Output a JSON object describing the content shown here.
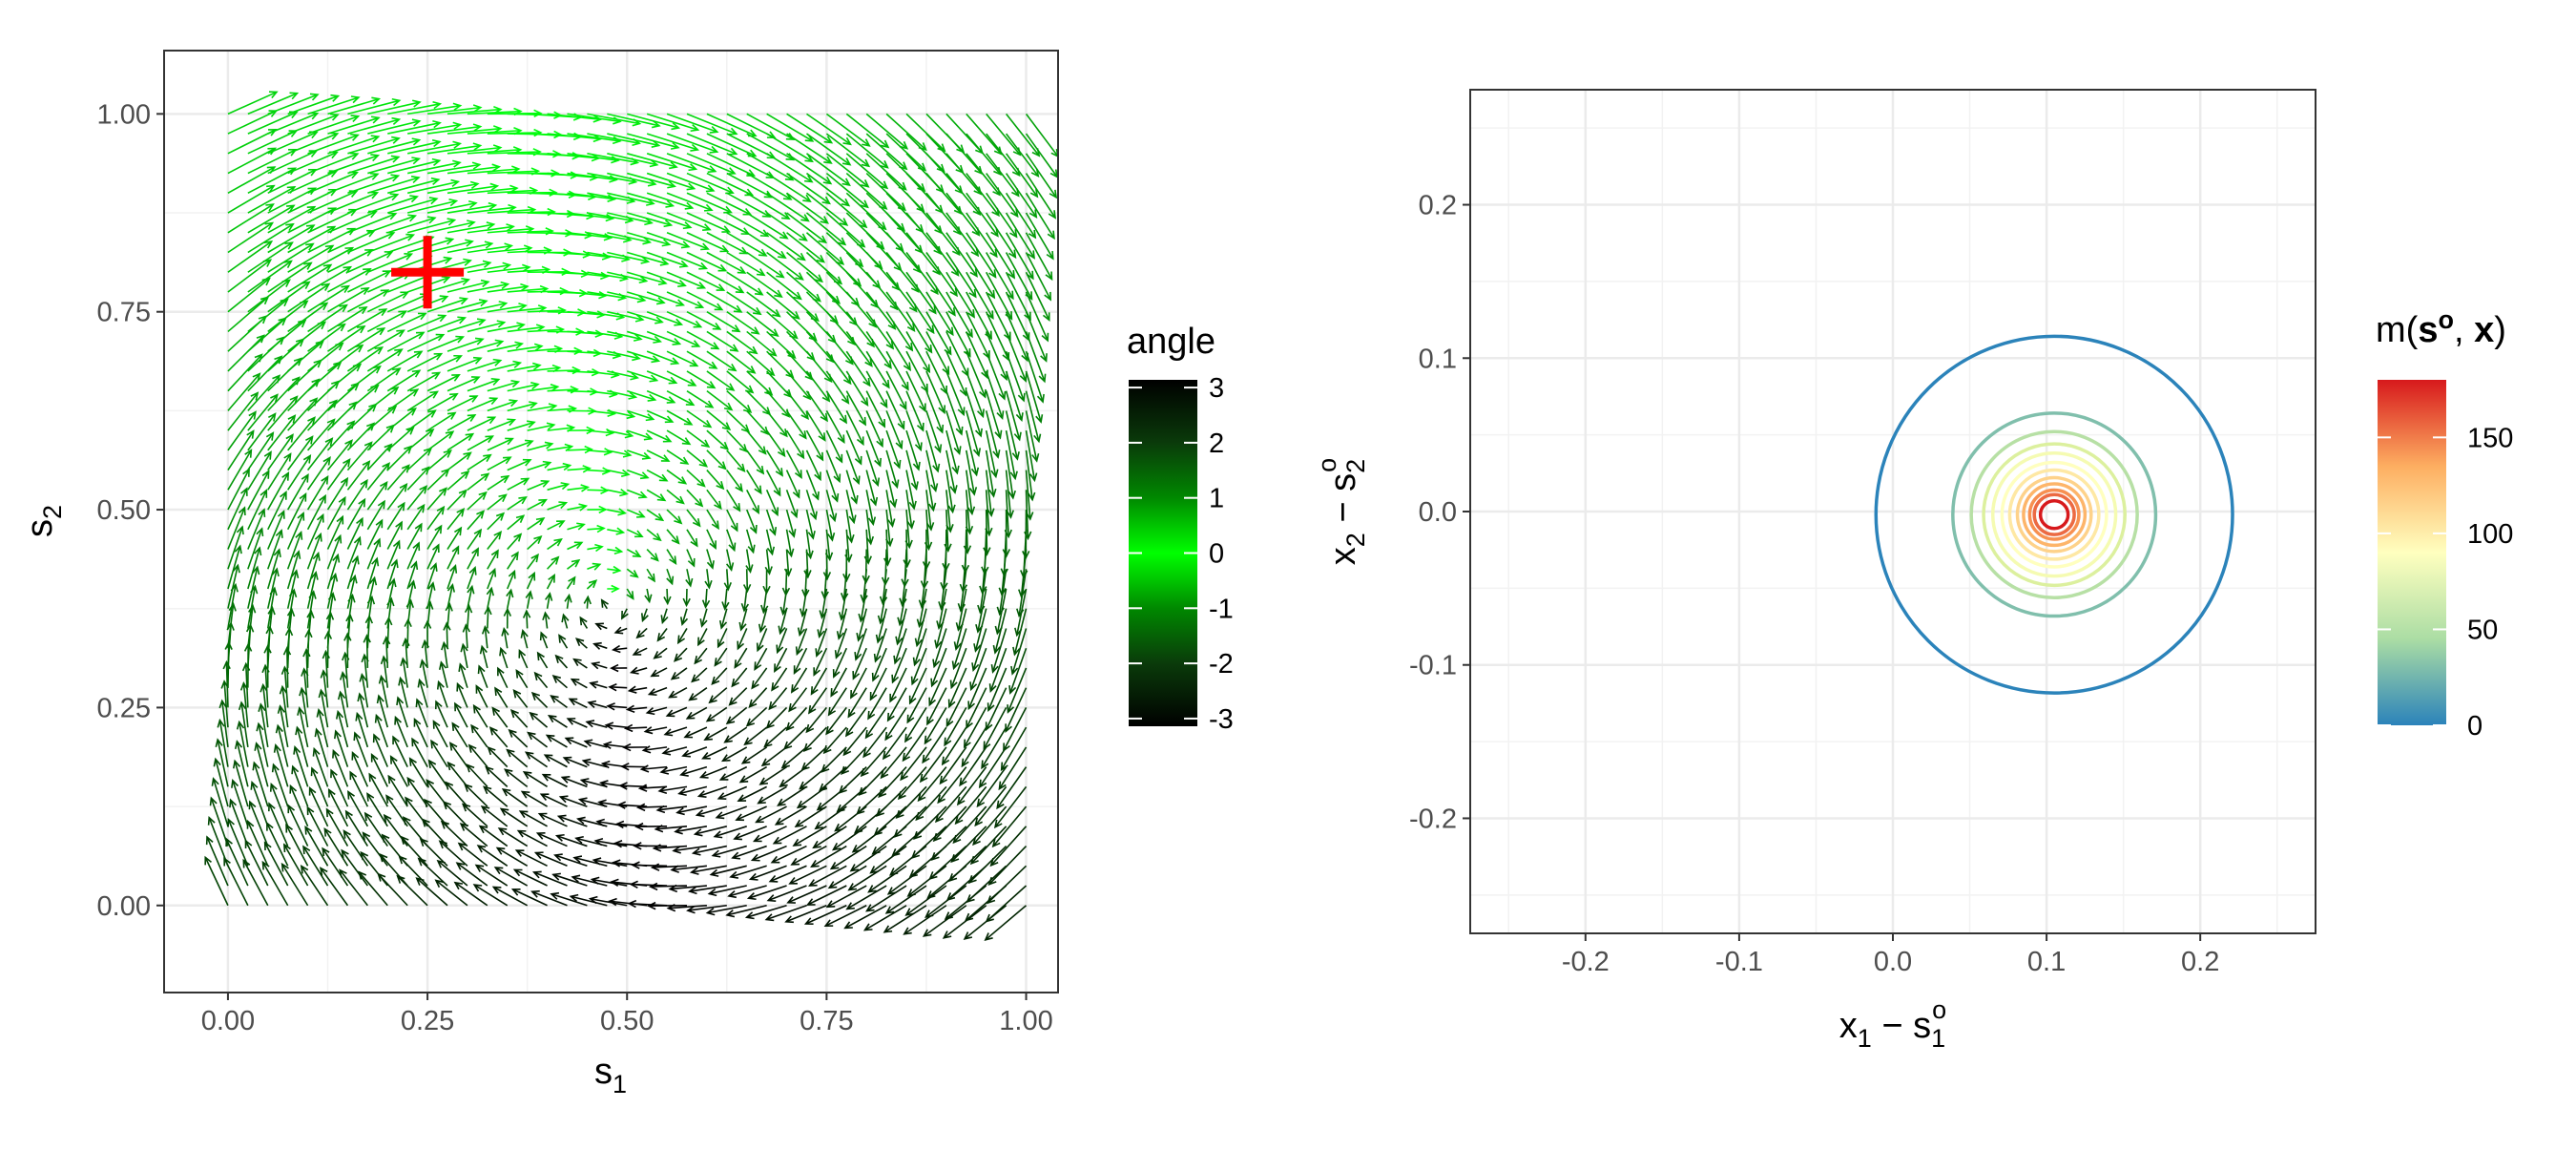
{
  "chart_data": [
    {
      "type": "quiver",
      "title": "",
      "xlabel": "s",
      "xlabel_sub": "1",
      "ylabel": "s",
      "ylabel_sub": "2",
      "xlim": [
        -0.08,
        1.04
      ],
      "ylim": [
        -0.11,
        1.08
      ],
      "x_ticks": [
        0.0,
        0.25,
        0.5,
        0.75,
        1.0
      ],
      "x_tick_labels": [
        "0.00",
        "0.25",
        "0.50",
        "0.75",
        "1.00"
      ],
      "y_ticks": [
        0.0,
        0.25,
        0.5,
        0.75,
        1.0
      ],
      "y_tick_labels": [
        "0.00",
        "0.25",
        "0.50",
        "0.75",
        "1.00"
      ],
      "grid": true,
      "marker": {
        "x": 0.25,
        "y": 0.8,
        "shape": "cross",
        "color": "#ff0000"
      },
      "field": {
        "grid_x": [
          0.0,
          1.0,
          41
        ],
        "grid_y": [
          0.0,
          1.0,
          41
        ],
        "center": [
          0.48,
          0.38
        ],
        "description": "arrow direction angle relative to x-axis in radians"
      },
      "legend": {
        "title": "angle",
        "position": "right",
        "ticks": [
          3,
          2,
          1,
          0,
          -1,
          -2,
          -3
        ],
        "tick_labels": [
          "3",
          "2",
          "1",
          "0",
          "-1",
          "-2",
          "-3"
        ],
        "colors": [
          "#000000",
          "#0a3a0a",
          "#009900",
          "#00ff00",
          "#009900",
          "#0a3a0a",
          "#000000"
        ],
        "range": [
          -3.14,
          3.14
        ]
      }
    },
    {
      "type": "contour",
      "title": "",
      "xlabel": "x",
      "xlabel_sub": "1",
      "xlabel_minus": "s",
      "xlabel_minus_sub": "1",
      "xlabel_minus_sup": "o",
      "ylabel": "x",
      "ylabel_sub": "2",
      "ylabel_minus": "s",
      "ylabel_minus_sub": "2",
      "ylabel_minus_sup": "o",
      "xlim": [
        -0.275,
        0.275
      ],
      "ylim": [
        -0.275,
        0.275
      ],
      "x_ticks": [
        -0.2,
        -0.1,
        0.0,
        0.1,
        0.2
      ],
      "x_tick_labels": [
        "-0.2",
        "-0.1",
        "0.0",
        "0.1",
        "0.2"
      ],
      "y_ticks": [
        0.2,
        0.1,
        0.0,
        -0.1,
        -0.2
      ],
      "y_tick_labels": [
        "0.2",
        "0.1",
        "0.0",
        "-0.1",
        "-0.2"
      ],
      "grid": true,
      "center": [
        0.105,
        -0.002
      ],
      "contours": [
        {
          "level": 5,
          "radius": 0.116,
          "color": "#2b83ba"
        },
        {
          "level": 25,
          "radius": 0.066,
          "color": "#80bfac"
        },
        {
          "level": 45,
          "radius": 0.054,
          "color": "#b7e0a5"
        },
        {
          "level": 60,
          "radius": 0.046,
          "color": "#dcf09e"
        },
        {
          "level": 75,
          "radius": 0.04,
          "color": "#f5fbb2"
        },
        {
          "level": 90,
          "radius": 0.034,
          "color": "#ffffbf"
        },
        {
          "level": 105,
          "radius": 0.029,
          "color": "#fee8a4"
        },
        {
          "level": 120,
          "radius": 0.024,
          "color": "#fed28a"
        },
        {
          "level": 135,
          "radius": 0.02,
          "color": "#fdb56a"
        },
        {
          "level": 150,
          "radius": 0.016,
          "color": "#f79051"
        },
        {
          "level": 165,
          "radius": 0.013,
          "color": "#ec6a43"
        },
        {
          "level": 178,
          "radius": 0.009,
          "color": "#d7191c"
        }
      ],
      "legend": {
        "title_prefix": "m(",
        "title_bold_s": "s",
        "title_sup": "o",
        "title_sep": ", ",
        "title_bold_x": "x",
        "title_suffix": ")",
        "position": "right",
        "ticks": [
          150,
          100,
          50,
          0
        ],
        "tick_labels": [
          "150",
          "100",
          "50",
          "0"
        ],
        "range": [
          0,
          180
        ],
        "colors": [
          "#2b83ba",
          "#abdda4",
          "#ffffbf",
          "#fdae61",
          "#d7191c"
        ]
      }
    }
  ]
}
